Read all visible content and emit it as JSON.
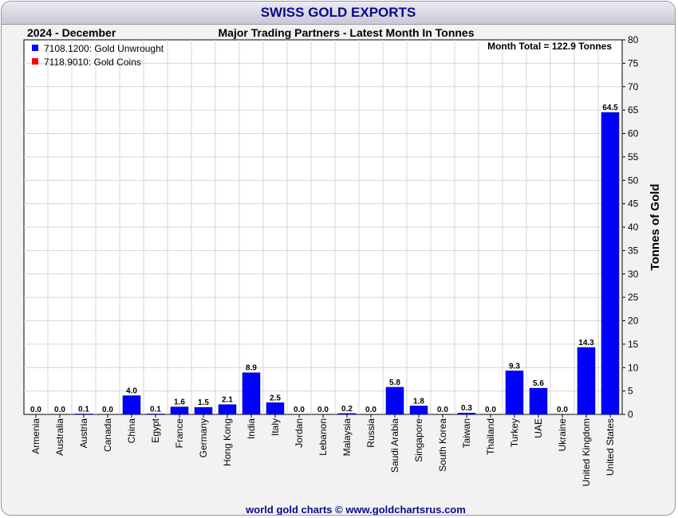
{
  "header": {
    "title": "SWISS GOLD EXPORTS"
  },
  "period": "2024 - December",
  "subtitle": "Major Trading Partners - Latest Month In Tonnes",
  "footer": "world gold charts © www.goldchartsrus.com",
  "month_total": "Month Total = 122.9 Tonnes",
  "colors": {
    "unwrought": "#0000ff",
    "coins": "#ff0000",
    "title": "#0a0a8c"
  },
  "chart_data": {
    "type": "bar",
    "title": "SWISS GOLD EXPORTS",
    "ylabel": "Tonnes of Gold",
    "xlabel": "",
    "ylim": [
      0,
      80
    ],
    "yticks": [
      0,
      5,
      10,
      15,
      20,
      25,
      30,
      35,
      40,
      45,
      50,
      55,
      60,
      65,
      70,
      75,
      80
    ],
    "grid": true,
    "legend": "top-left",
    "categories": [
      "Armenia",
      "Australia",
      "Austria",
      "Canada",
      "China",
      "Egypt",
      "France",
      "Germany",
      "Hong Kong",
      "India",
      "Italy",
      "Jordan",
      "Lebanon",
      "Malaysia",
      "Russia",
      "Saudi Arabia",
      "Singapore",
      "South Korea",
      "Taiwan",
      "Thailand",
      "Turkey",
      "UAE",
      "Ukraine",
      "United Kingdom",
      "United States"
    ],
    "values": [
      0.0,
      0.0,
      0.1,
      0.0,
      4.0,
      0.1,
      1.6,
      1.5,
      2.1,
      8.9,
      2.5,
      0.0,
      0.0,
      0.2,
      0.0,
      5.8,
      1.8,
      0.0,
      0.3,
      0.0,
      9.3,
      5.6,
      0.0,
      14.3,
      64.5
    ],
    "labels": [
      "0.0",
      "0.0",
      "0.1",
      "0.0",
      "4.0",
      "0.1",
      "1.6",
      "1.5",
      "2.1",
      "8.9",
      "2.5",
      "0.0",
      "0.0",
      "0.2",
      "0.0",
      "5.8",
      "1.8",
      "0.0",
      "0.3",
      "0.0",
      "9.3",
      "5.6",
      "0.0",
      "14.3",
      "64.5"
    ],
    "series": [
      {
        "name": "7108.1200: Gold Unwrought",
        "color": "#0000ff"
      },
      {
        "name": "7118.9010: Gold Coins",
        "color": "#ff0000"
      }
    ]
  }
}
